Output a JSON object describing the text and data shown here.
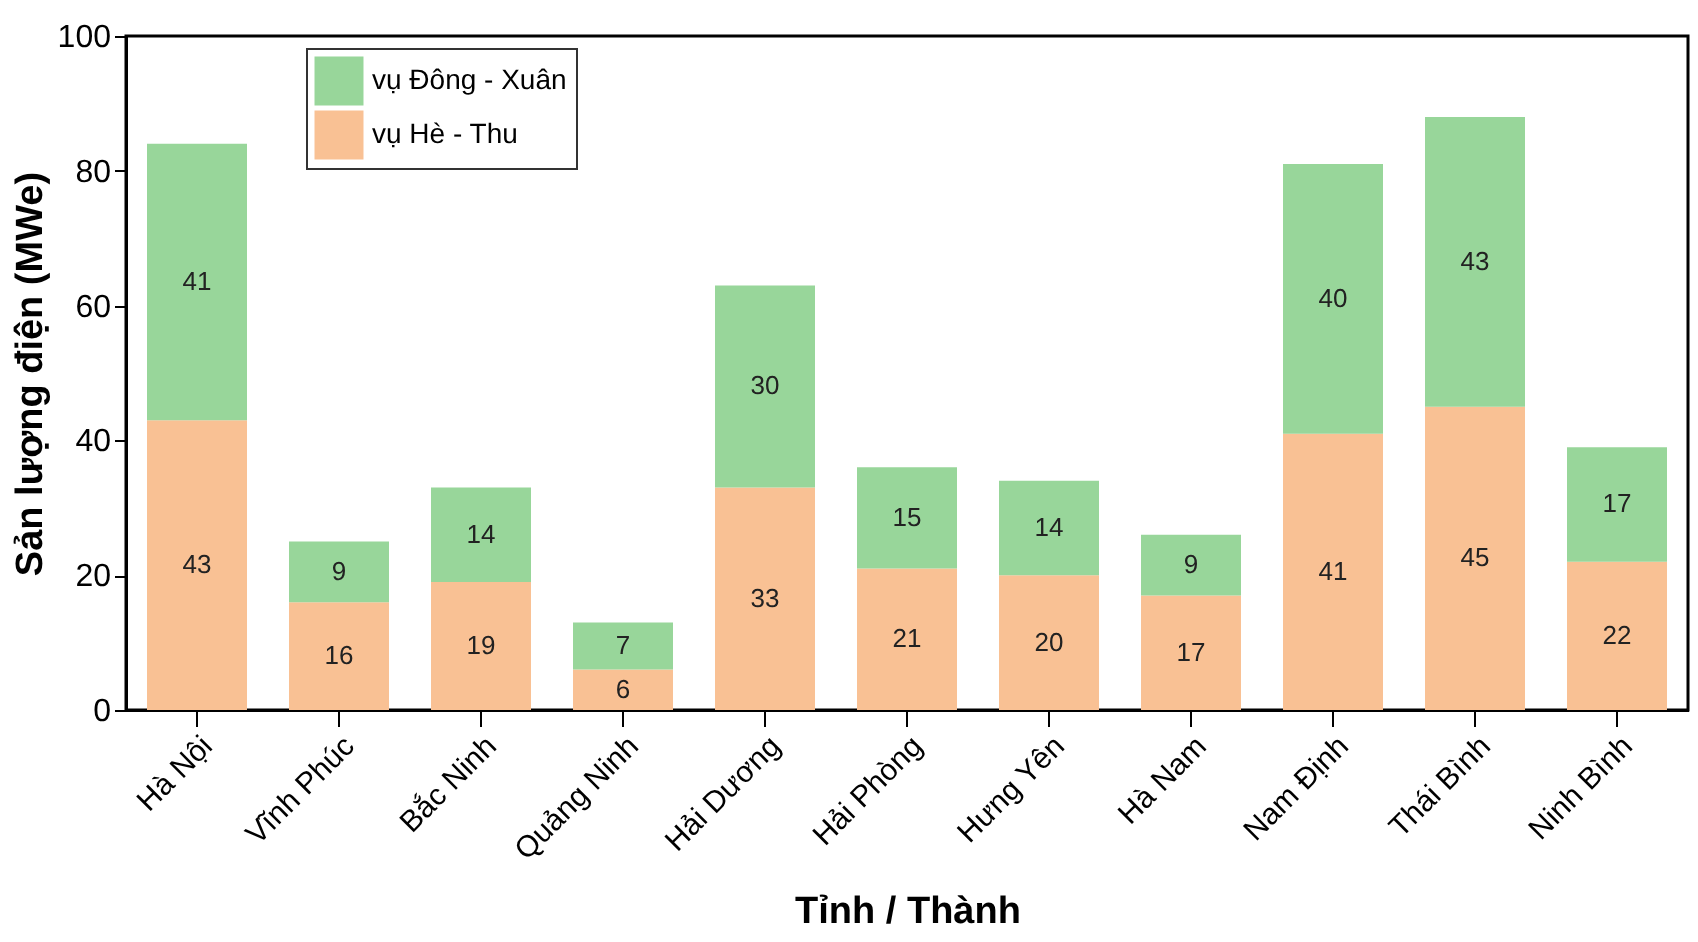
{
  "chart_data": {
    "type": "bar",
    "stacked": true,
    "xlabel": "Tỉnh / Thành",
    "ylabel": "Sản lượng điện (MWe)",
    "categories": [
      "Hà Nội",
      "Vĩnh Phúc",
      "Bắc Ninh",
      "Quảng Ninh",
      "Hải Dương",
      "Hải Phòng",
      "Hưng Yên",
      "Hà Nam",
      "Nam Định",
      "Thái Bình",
      "Ninh Bình"
    ],
    "series": [
      {
        "name": "vụ Hè - Thu",
        "color": "#f9c194",
        "values": [
          43,
          16,
          19,
          6,
          33,
          21,
          20,
          17,
          41,
          45,
          22
        ]
      },
      {
        "name": "vụ Đông - Xuân",
        "color": "#98d69a",
        "values": [
          41,
          9,
          14,
          7,
          30,
          15,
          14,
          9,
          40,
          43,
          17
        ]
      }
    ],
    "ylim": [
      0,
      100
    ],
    "yticks": [
      0,
      20,
      40,
      60,
      80,
      100
    ],
    "grid": false,
    "legend": "top left",
    "data_labels": true
  }
}
